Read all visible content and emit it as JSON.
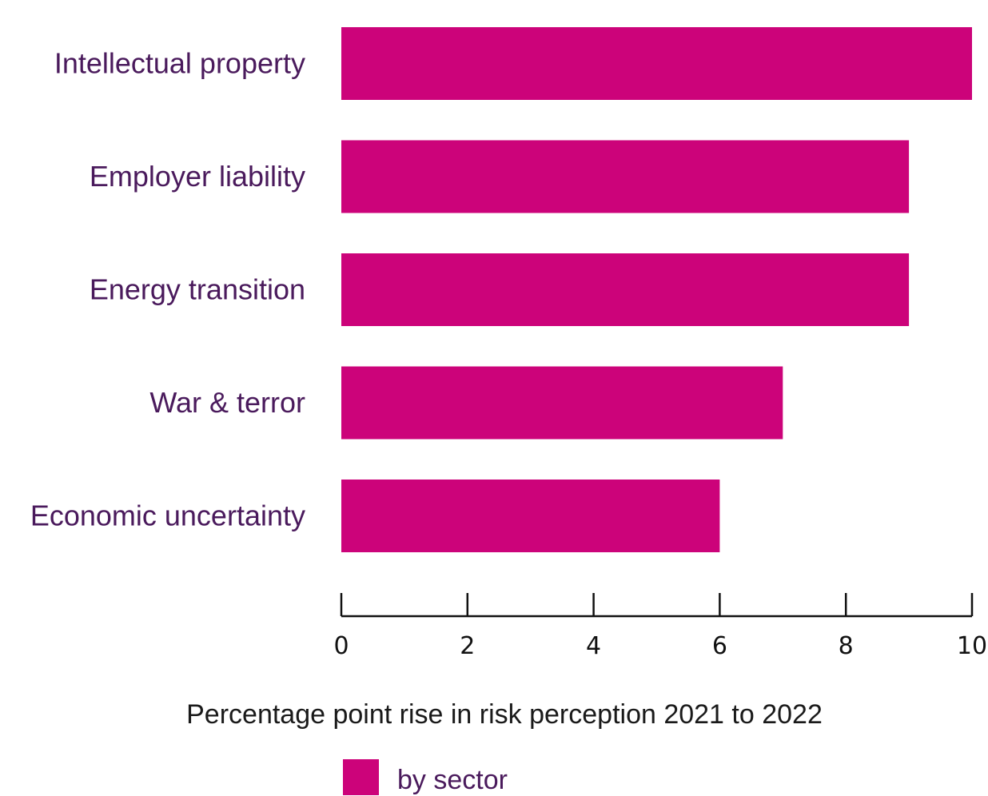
{
  "chart_data": {
    "type": "bar",
    "orientation": "horizontal",
    "categories": [
      "Intellectual property",
      "Employer liability",
      "Energy transition",
      "War & terror",
      "Economic uncertainty"
    ],
    "series": [
      {
        "name": "by sector",
        "values": [
          10,
          9,
          9,
          7,
          6
        ],
        "color": "#cc037a"
      }
    ],
    "xlabel": "Percentage point rise in risk perception 2021 to 2022",
    "ylabel": "",
    "xlim": [
      0,
      10
    ],
    "xticks": [
      0,
      2,
      4,
      6,
      8,
      10
    ],
    "grid": false,
    "legend_position": "bottom"
  },
  "colors": {
    "bar": "#cc037a",
    "category_text": "#4a1a5c",
    "axis": "#111111"
  }
}
